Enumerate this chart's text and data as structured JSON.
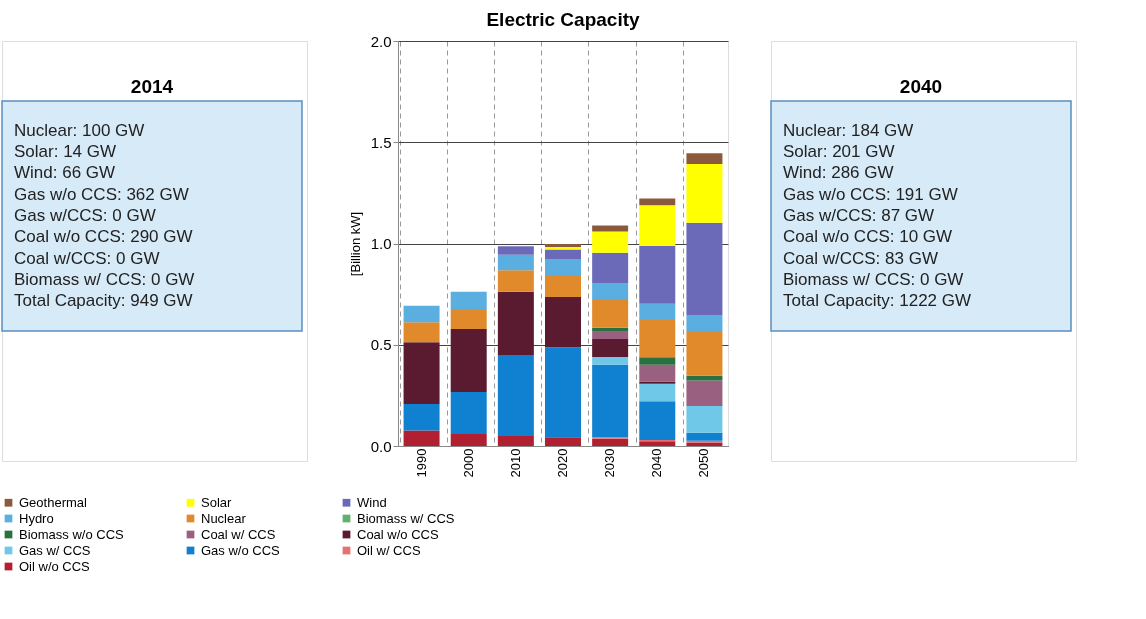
{
  "chart_data": {
    "type": "bar",
    "title": "Electric Capacity",
    "ylabel": "[Billion kW]",
    "stacked": true,
    "categories": [
      "1990",
      "2000",
      "2010",
      "2020",
      "2030",
      "2040",
      "2050"
    ],
    "series": [
      {
        "name": "Oil w/o CCS",
        "color": "#b02030",
        "values": [
          0.076,
          0.059,
          0.05,
          0.043,
          0.036,
          0.023,
          0.017
        ]
      },
      {
        "name": "Oil w/ CCS",
        "color": "#e87070",
        "values": [
          0,
          0,
          0,
          0,
          0.007,
          0.007,
          0.009
        ]
      },
      {
        "name": "Gas w/o CCS",
        "color": "#1080d0",
        "values": [
          0.132,
          0.208,
          0.4,
          0.445,
          0.358,
          0.191,
          0.04
        ]
      },
      {
        "name": "Gas w/ CCS",
        "color": "#70c8e8",
        "values": [
          0,
          0,
          0,
          0,
          0.038,
          0.087,
          0.132
        ]
      },
      {
        "name": "Coal w/o CCS",
        "color": "#5a1a30",
        "values": [
          0.304,
          0.311,
          0.312,
          0.248,
          0.089,
          0.01,
          0
        ]
      },
      {
        "name": "Coal w/ CCS",
        "color": "#9a6080",
        "values": [
          0,
          0,
          0,
          0,
          0.036,
          0.083,
          0.125
        ]
      },
      {
        "name": "Biomass w/o CCS",
        "color": "#2a7040",
        "values": [
          0,
          0,
          0,
          0,
          0.02,
          0.037,
          0.024
        ]
      },
      {
        "name": "Biomass w/ CCS",
        "color": "#60b070",
        "values": [
          0,
          0,
          0,
          0,
          0,
          0,
          0
        ]
      },
      {
        "name": "Nuclear",
        "color": "#e08a2c",
        "values": [
          0.099,
          0.099,
          0.106,
          0.109,
          0.142,
          0.184,
          0.221
        ]
      },
      {
        "name": "Hydro",
        "color": "#5aaee0",
        "values": [
          0.082,
          0.085,
          0.076,
          0.079,
          0.079,
          0.08,
          0.079
        ]
      },
      {
        "name": "Wind",
        "color": "#6a6ab8",
        "values": [
          0,
          0,
          0.043,
          0.046,
          0.149,
          0.286,
          0.455
        ]
      },
      {
        "name": "Solar",
        "color": "#ffff00",
        "values": [
          0,
          0,
          0,
          0.013,
          0.105,
          0.201,
          0.291
        ]
      },
      {
        "name": "Geothermal",
        "color": "#8b5a3c",
        "values": [
          0,
          0,
          0,
          0.014,
          0.03,
          0.033,
          0.053
        ]
      }
    ],
    "ylim": [
      0,
      2
    ],
    "yticks": [
      {
        "value": 0,
        "label": "0.0"
      },
      {
        "value": 0.5,
        "label": "0.5"
      },
      {
        "value": 1,
        "label": "1.0"
      },
      {
        "value": 1.5,
        "label": "1.5"
      },
      {
        "value": 2,
        "label": "2.0"
      }
    ],
    "grid": true,
    "legend": "bottom",
    "annotations": [
      "2014\nNuclear: 100 GW\nSolar: 14 GW\nWind: 66 GW\nGas w/o CCS: 362 GW\nGas w/CCS: 0 GW\nCoal w/o CCS: 290 GW\nCoal w/CCS: 0 GW\nBiomass w/ CCS: 0 GW\nTotal Capacity: 949 GW",
      "2040\nNuclear: 184 GW\nSolar: 201 GW\nWind: 286 GW\nGas w/o CCS: 191 GW\nGas w/CCS: 87 GW\nCoal w/o CCS:  10 GW\nCoal w/CCS: 83 GW\nBiomass w/ CCS: 0 GW\nTotal Capacity: 1222 GW"
    ]
  }
}
